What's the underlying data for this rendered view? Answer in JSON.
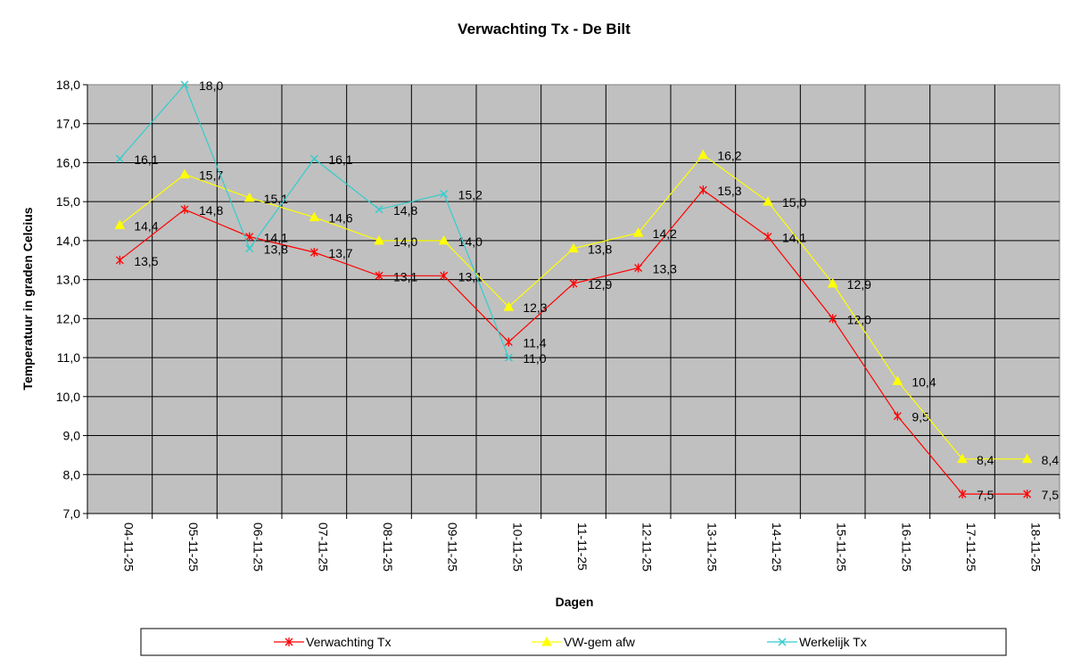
{
  "chart_data": {
    "type": "line",
    "title": "Verwachting Tx - De Bilt",
    "xlabel": "Dagen",
    "ylabel": "Temperatuur in graden Celcius",
    "ylim": [
      7.0,
      18.0
    ],
    "ytick_step": 1.0,
    "grid": true,
    "legend_position": "bottom",
    "plot_background": "#c0c0c0",
    "categories": [
      "04-11-25",
      "05-11-25",
      "06-11-25",
      "07-11-25",
      "08-11-25",
      "09-11-25",
      "10-11-25",
      "11-11-25",
      "12-11-25",
      "13-11-25",
      "14-11-25",
      "15-11-25",
      "16-11-25",
      "17-11-25",
      "18-11-25"
    ],
    "series": [
      {
        "name": "Verwachting Tx",
        "color": "#ff0000",
        "marker": "star-icon",
        "values": [
          13.5,
          14.8,
          14.1,
          13.7,
          13.1,
          13.1,
          11.4,
          12.9,
          13.3,
          15.3,
          14.1,
          12.0,
          9.5,
          7.5,
          7.5
        ],
        "labels": [
          "13,5",
          "14,8",
          "14,1",
          "13,7",
          "13,1",
          "13,1",
          "11,4",
          "12,9",
          "13,3",
          "15,3",
          "14,1",
          "12,0",
          "9,5",
          "7,5",
          "7,5"
        ]
      },
      {
        "name": "VW-gem afw",
        "color": "#ffff00",
        "marker": "triangle-icon",
        "values": [
          14.4,
          15.7,
          15.1,
          14.6,
          14.0,
          14.0,
          12.3,
          13.8,
          14.2,
          16.2,
          15.0,
          12.9,
          10.4,
          8.4,
          8.4
        ],
        "labels": [
          "14,4",
          "15,7",
          "15,1",
          "14,6",
          "14,0",
          "14,0",
          "12,3",
          "13,8",
          "14,2",
          "16,2",
          "15,0",
          "12,9",
          "10,4",
          "8,4",
          "8,4"
        ]
      },
      {
        "name": "Werkelijk Tx",
        "color": "#33cccc",
        "marker": "x-icon",
        "values": [
          16.1,
          18.0,
          13.8,
          16.1,
          14.8,
          15.2,
          11.0,
          null,
          null,
          null,
          null,
          null,
          null,
          null,
          null
        ],
        "labels": [
          "16,1",
          "18,0",
          "13,8",
          "16,1",
          "14,8",
          "15,2",
          "11,0",
          null,
          null,
          null,
          null,
          null,
          null,
          null,
          null
        ]
      }
    ],
    "yticks": [
      "7,0",
      "8,0",
      "9,0",
      "10,0",
      "11,0",
      "12,0",
      "13,0",
      "14,0",
      "15,0",
      "16,0",
      "17,0",
      "18,0"
    ]
  }
}
